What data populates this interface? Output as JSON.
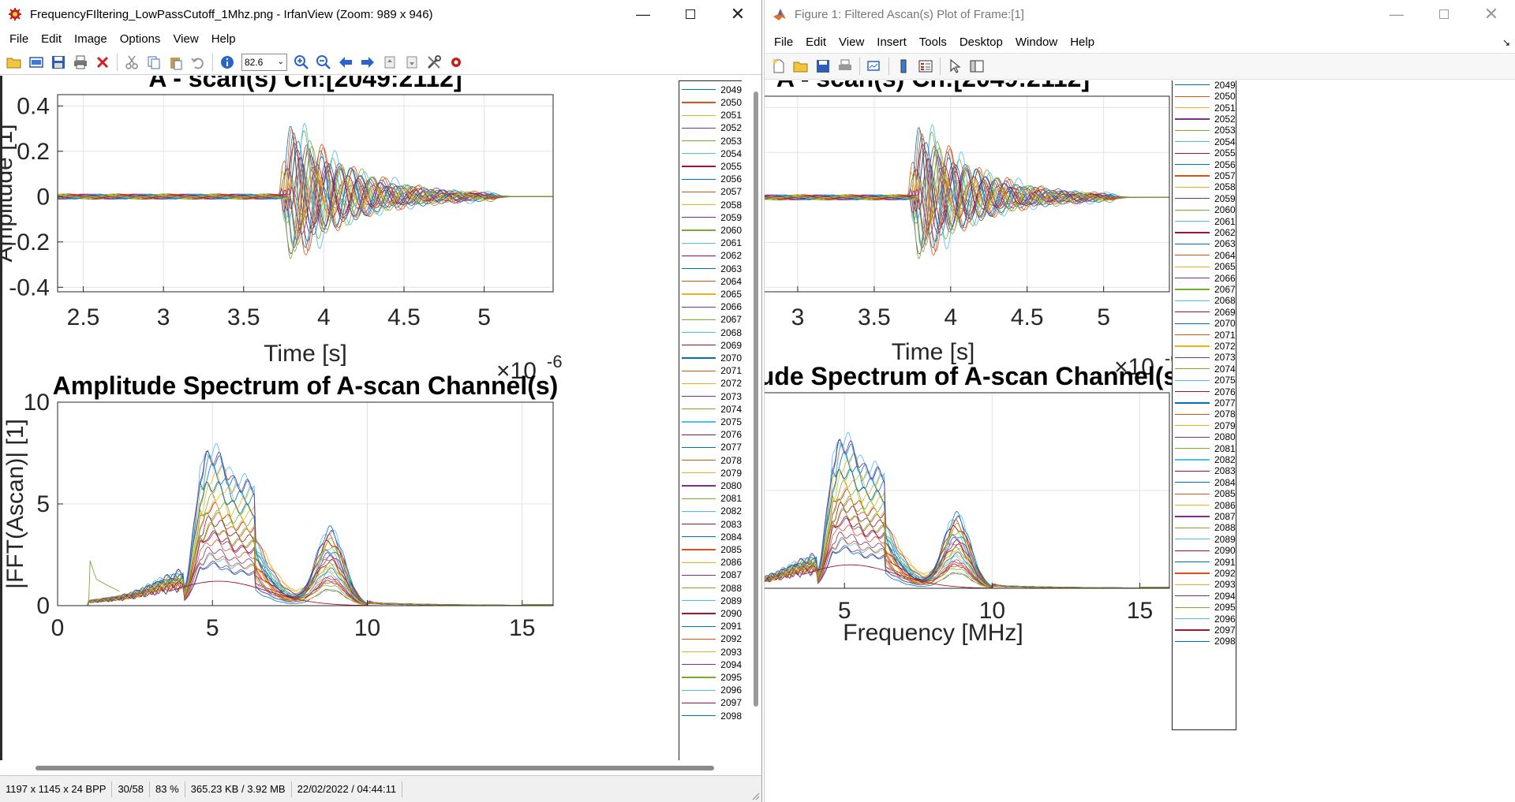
{
  "irfanview": {
    "title": "FrequencyFIltering_LowPassCutoff_1Mhz.png - IrfanView (Zoom: 989 x 946)",
    "menu": [
      "File",
      "Edit",
      "Image",
      "Options",
      "View",
      "Help"
    ],
    "zoom_value": "82.6",
    "status": [
      "1197 x 1145 x 24 BPP",
      "30/58",
      "83 %",
      "365.23 KB / 3.92 MB",
      "22/02/2022 / 04:44:11"
    ]
  },
  "figure": {
    "title": "Figure 1: Filtered Ascan(s) Plot of Frame:[1]",
    "menu": [
      "File",
      "Edit",
      "View",
      "Insert",
      "Tools",
      "Desktop",
      "Window",
      "Help"
    ]
  },
  "colors": {
    "series": [
      "#0072BD",
      "#D95319",
      "#EDB120",
      "#7E2F8E",
      "#77AC30",
      "#4DBEEE",
      "#A2142F"
    ]
  },
  "legend_labels": [
    "2049",
    "2050",
    "2051",
    "2052",
    "2053",
    "2054",
    "2055",
    "2056",
    "2057",
    "2058",
    "2059",
    "2060",
    "2061",
    "2062",
    "2063",
    "2064",
    "2065",
    "2066",
    "2067",
    "2068",
    "2069",
    "2070",
    "2071",
    "2072",
    "2073",
    "2074",
    "2075",
    "2076",
    "2077",
    "2078",
    "2079",
    "2080",
    "2081",
    "2082",
    "2083",
    "2084",
    "2085",
    "2086",
    "2087",
    "2088",
    "2089",
    "2090",
    "2091",
    "2092",
    "2093",
    "2094",
    "2095",
    "2096",
    "2097",
    "2098"
  ],
  "chart_data": [
    {
      "type": "line",
      "title": "A - scan(s) Ch:[2049:2112]",
      "xlabel": "Time [s]",
      "ylabel": "Amplitude [1]",
      "x_exponent_label": "×10",
      "x_exponent": "-6",
      "x_ticks": [
        "2.5",
        "3",
        "3.5",
        "4",
        "4.5",
        "5"
      ],
      "y_ticks": [
        "0.4",
        "0.2",
        "0",
        "-0.2",
        "-0.4"
      ],
      "xlim": [
        2.34e-06,
        5.43e-06
      ],
      "ylim": [
        -0.42,
        0.45
      ],
      "grid": true,
      "legend": "right",
      "series_count": 64,
      "envelope": {
        "onset": 3.72e-06,
        "peak": 0.43,
        "trough": -0.37,
        "decay_end": 5.05e-06,
        "noise": 0.012
      }
    },
    {
      "type": "line",
      "title": "Amplitude Spectrum of A-scan Channel(s)",
      "xlabel": "Frequency [MHz]",
      "ylabel": "|FFT(Ascan)| [1]",
      "x_ticks": [
        "0",
        "5",
        "10",
        "15"
      ],
      "y_ticks": [
        "10",
        "5",
        "0"
      ],
      "xlim": [
        0,
        16
      ],
      "ylim": [
        0,
        10
      ],
      "grid": true,
      "legend": "right",
      "series_count": 64,
      "features": {
        "low_cut": 1.0,
        "main_peak_freq": 4.9,
        "main_peak": 8.0,
        "second_peak_freq": 8.8,
        "second_peak": 3.9,
        "floor_end": 15.0
      }
    }
  ]
}
